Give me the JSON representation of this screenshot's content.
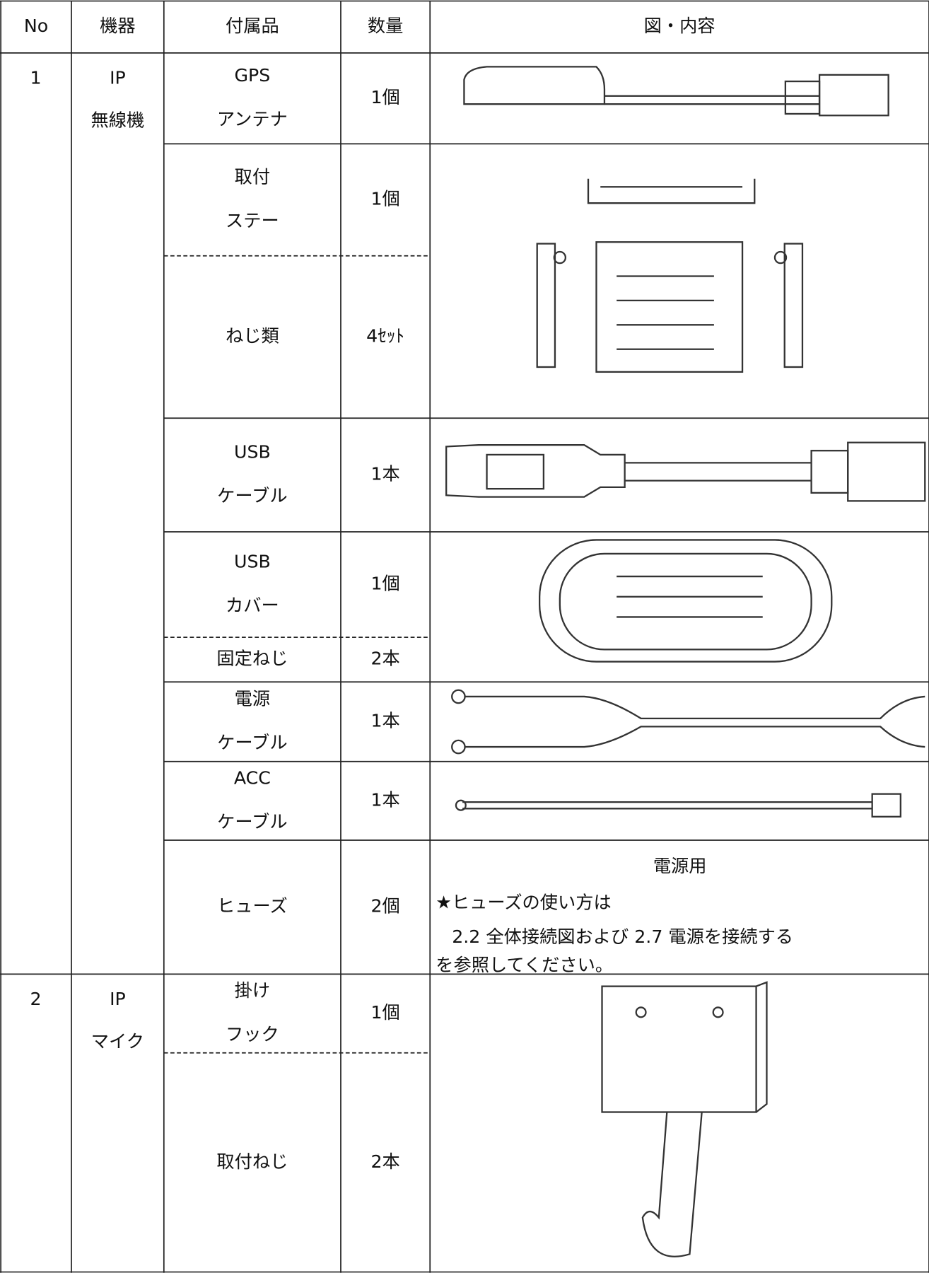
{
  "table": {
    "header": [
      "No",
      "機器",
      "付属品",
      "数量",
      "図・内容"
    ],
    "groups": [
      {
        "no": "1",
        "device": [
          "IP",
          "無線機"
        ],
        "items": [
          {
            "name": [
              "GPS",
              "アンテナ"
            ],
            "qty": "1個"
          },
          {
            "name": [
              "取付",
              "ステー"
            ],
            "qty": "1個"
          },
          {
            "name": [
              "ねじ類"
            ],
            "qty": "4ｾｯﾄ"
          },
          {
            "name": [
              "USB",
              "ケーブル"
            ],
            "qty": "1本"
          },
          {
            "name": [
              "USB",
              "カバー"
            ],
            "qty": "1個"
          },
          {
            "name": [
              "固定ねじ"
            ],
            "qty": "2本"
          },
          {
            "name": [
              "電源",
              "ケーブル"
            ],
            "qty": "1本"
          },
          {
            "name": [
              "ACC",
              "ケーブル"
            ],
            "qty": "1本"
          },
          {
            "name": [
              "ヒューズ"
            ],
            "qty": "2個",
            "content": {
              "title": "電源用",
              "lines": [
                "★ヒューズの使い方は",
                "2.2 全体接続図および 2.7 電源を接続する",
                "を参照してください。"
              ]
            }
          }
        ]
      },
      {
        "no": "2",
        "device": [
          "IP",
          "マイク"
        ],
        "items": [
          {
            "name": [
              "掛け",
              "フック"
            ],
            "qty": "1個"
          },
          {
            "name": [
              "取付ねじ"
            ],
            "qty": "2本"
          }
        ]
      }
    ]
  }
}
